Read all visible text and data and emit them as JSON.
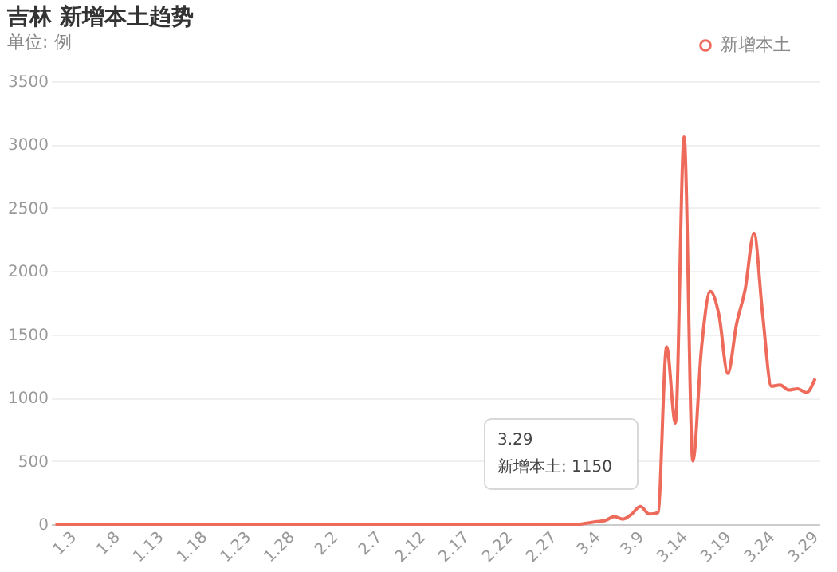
{
  "chart_data": {
    "type": "line",
    "title": "吉林 新增本土趋势",
    "subtitle": "单位: 例",
    "categories": [
      null,
      null,
      "1.3",
      null,
      null,
      null,
      null,
      "1.8",
      null,
      null,
      null,
      null,
      "1.13",
      null,
      null,
      null,
      null,
      "1.18",
      null,
      null,
      null,
      null,
      "1.23",
      null,
      null,
      null,
      null,
      "1.28",
      null,
      null,
      null,
      null,
      "2.2",
      null,
      null,
      null,
      null,
      "2.7",
      null,
      null,
      null,
      null,
      "2.12",
      null,
      null,
      null,
      null,
      "2.17",
      null,
      null,
      null,
      null,
      "2.22",
      null,
      null,
      null,
      null,
      "2.27",
      null,
      null,
      null,
      null,
      "3.4",
      null,
      null,
      null,
      null,
      "3.9",
      null,
      null,
      null,
      null,
      "3.14",
      null,
      null,
      null,
      null,
      "3.19",
      null,
      null,
      null,
      null,
      "3.24",
      null,
      null,
      null,
      null,
      "3.29"
    ],
    "series": [
      {
        "name": "新增本土",
        "color": "#ee6a5a",
        "values": [
          0,
          0,
          0,
          0,
          0,
          0,
          0,
          0,
          0,
          0,
          0,
          0,
          0,
          0,
          0,
          0,
          0,
          0,
          0,
          0,
          0,
          0,
          0,
          0,
          0,
          0,
          0,
          0,
          0,
          0,
          0,
          0,
          0,
          0,
          0,
          0,
          0,
          0,
          0,
          0,
          0,
          0,
          0,
          0,
          0,
          0,
          0,
          0,
          0,
          0,
          0,
          0,
          0,
          0,
          0,
          0,
          0,
          0,
          0,
          0,
          0,
          10,
          20,
          30,
          60,
          40,
          80,
          140,
          80,
          90,
          1400,
          800,
          3060,
          500,
          1400,
          1840,
          1650,
          1190,
          1580,
          1860,
          2300,
          1650,
          1090,
          1100,
          1060,
          1070,
          1040,
          1150
        ]
      }
    ],
    "ylim": [
      0,
      3500
    ],
    "yticks": [
      0,
      500,
      1000,
      1500,
      2000,
      2500,
      3000,
      3500
    ],
    "grid": "y",
    "legend": "top right",
    "marker": "none",
    "line_style": "solid",
    "annotations": [
      "3.29",
      "新增本土: 1150"
    ]
  }
}
